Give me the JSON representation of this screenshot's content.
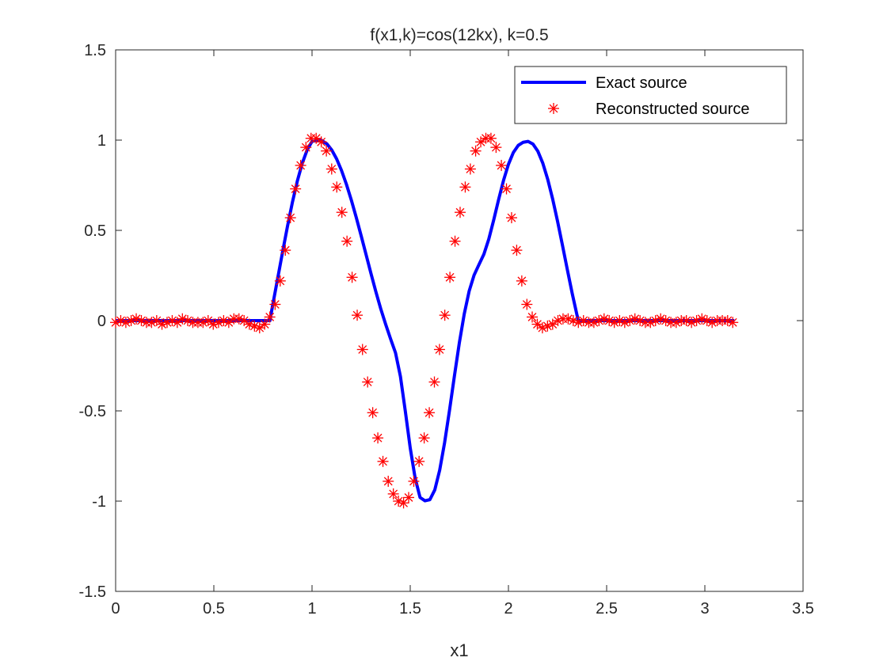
{
  "chart_data": {
    "type": "line",
    "title": "f(x1,k)=cos(12kx),   k=0.5",
    "xlabel": "x1",
    "ylabel": "",
    "xlim": [
      0,
      3.5
    ],
    "ylim": [
      -1.5,
      1.5
    ],
    "xticks": [
      "0",
      "0.5",
      "1",
      "1.5",
      "2",
      "2.5",
      "3",
      "3.5"
    ],
    "yticks": [
      "-1.5",
      "-1",
      "-0.5",
      "0",
      "0.5",
      "1",
      "1.5"
    ],
    "grid": false,
    "legend": {
      "position": "top-right"
    },
    "series": [
      {
        "name": "Exact source",
        "style": "line",
        "color": "#0000FF",
        "x": [
          0,
          0.7854,
          0.8,
          0.825,
          0.85,
          0.875,
          0.9,
          0.925,
          0.95,
          0.975,
          1.0,
          1.025,
          1.05,
          1.075,
          1.1,
          1.125,
          1.15,
          1.175,
          1.2,
          1.225,
          1.25,
          1.275,
          1.3,
          1.325,
          1.35,
          1.375,
          1.4,
          1.425,
          1.45,
          1.475,
          1.5,
          1.525,
          1.55,
          1.575,
          1.6,
          1.625,
          1.65,
          1.675,
          1.7,
          1.725,
          1.75,
          1.775,
          1.8,
          1.825,
          1.85,
          1.875,
          1.9,
          1.925,
          1.95,
          1.975,
          2.0,
          2.025,
          2.05,
          2.075,
          2.1,
          2.125,
          2.15,
          2.175,
          2.2,
          2.225,
          2.25,
          2.275,
          2.3,
          2.325,
          2.35,
          2.3562,
          3.15
        ],
        "y": [
          0,
          0,
          0.0878,
          0.2334,
          0.3802,
          0.5226,
          0.6552,
          0.7728,
          0.8709,
          0.9454,
          0.9931,
          0.9988,
          0.9978,
          0.9801,
          0.946,
          0.8963,
          0.8322,
          0.7555,
          0.6681,
          0.5723,
          0.4707,
          0.3661,
          0.2616,
          0.1601,
          0.0649,
          -0.0209,
          -0.1013,
          -0.1782,
          -0.3089,
          -0.5021,
          -0.7056,
          -0.8725,
          -0.9797,
          -0.9981,
          -0.9918,
          -0.9377,
          -0.8281,
          -0.6759,
          -0.4964,
          -0.3062,
          -0.1229,
          0.0369,
          0.1636,
          0.2518,
          0.3105,
          0.3679,
          0.4517,
          0.5578,
          0.6708,
          0.777,
          0.866,
          0.9313,
          0.9709,
          0.988,
          0.9929,
          0.9778,
          0.9378,
          0.8721,
          0.783,
          0.6743,
          0.5507,
          0.4178,
          0.2817,
          0.1489,
          0.0262,
          0,
          0
        ]
      },
      {
        "name": "Reconstructed source",
        "style": "markers",
        "marker": "asterisk",
        "color": "#FF0000",
        "x": [
          0,
          0.026,
          0.052,
          0.079,
          0.105,
          0.131,
          0.157,
          0.183,
          0.209,
          0.236,
          0.262,
          0.288,
          0.314,
          0.34,
          0.367,
          0.393,
          0.419,
          0.445,
          0.471,
          0.497,
          0.524,
          0.55,
          0.576,
          0.602,
          0.628,
          0.654,
          0.681,
          0.707,
          0.733,
          0.759,
          0.785,
          0.812,
          0.838,
          0.864,
          0.89,
          0.916,
          0.942,
          0.969,
          0.995,
          1.021,
          1.047,
          1.073,
          1.1,
          1.126,
          1.152,
          1.178,
          1.204,
          1.23,
          1.257,
          1.283,
          1.309,
          1.335,
          1.361,
          1.388,
          1.414,
          1.44,
          1.466,
          1.492,
          1.518,
          1.545,
          1.571,
          1.597,
          1.623,
          1.649,
          1.676,
          1.702,
          1.728,
          1.754,
          1.78,
          1.806,
          1.833,
          1.859,
          1.885,
          1.911,
          1.937,
          1.964,
          1.99,
          2.016,
          2.042,
          2.068,
          2.094,
          2.121,
          2.147,
          2.173,
          2.199,
          2.225,
          2.252,
          2.278,
          2.304,
          2.33,
          2.356,
          2.382,
          2.409,
          2.435,
          2.461,
          2.487,
          2.513,
          2.539,
          2.566,
          2.592,
          2.618,
          2.644,
          2.67,
          2.697,
          2.723,
          2.749,
          2.775,
          2.801,
          2.827,
          2.854,
          2.88,
          2.906,
          2.932,
          2.958,
          2.985,
          3.011,
          3.037,
          3.063,
          3.089,
          3.116,
          3.142
        ],
        "y": [
          -0.01,
          0.0,
          -0.01,
          0.0,
          0.01,
          0.0,
          -0.01,
          -0.01,
          0.0,
          -0.02,
          -0.01,
          0.0,
          -0.01,
          0.01,
          0.0,
          -0.01,
          -0.01,
          -0.01,
          0.0,
          -0.02,
          -0.01,
          0.0,
          -0.01,
          0.01,
          0.01,
          0.0,
          -0.02,
          -0.03,
          -0.04,
          -0.02,
          0.02,
          0.09,
          0.22,
          0.39,
          0.57,
          0.73,
          0.86,
          0.96,
          1.01,
          1.01,
          0.99,
          0.94,
          0.84,
          0.74,
          0.6,
          0.44,
          0.24,
          0.03,
          -0.16,
          -0.34,
          -0.51,
          -0.65,
          -0.78,
          -0.89,
          -0.96,
          -1.0,
          -1.01,
          -0.98,
          -0.89,
          -0.78,
          -0.65,
          -0.51,
          -0.34,
          -0.16,
          0.03,
          0.24,
          0.44,
          0.6,
          0.74,
          0.84,
          0.94,
          0.99,
          1.01,
          1.01,
          0.96,
          0.86,
          0.73,
          0.57,
          0.39,
          0.22,
          0.09,
          0.02,
          -0.02,
          -0.04,
          -0.03,
          -0.02,
          0.0,
          0.01,
          0.01,
          0.0,
          -0.01,
          0.0,
          -0.01,
          -0.01,
          0.0,
          0.01,
          0.0,
          -0.01,
          0.0,
          -0.01,
          0.0,
          0.01,
          0.0,
          -0.01,
          -0.01,
          0.0,
          0.01,
          0.0,
          -0.01,
          -0.01,
          0.0,
          0.0,
          -0.01,
          0.0,
          0.01,
          0.0,
          -0.01,
          0.0,
          0.0,
          0.0,
          -0.01
        ]
      }
    ]
  }
}
